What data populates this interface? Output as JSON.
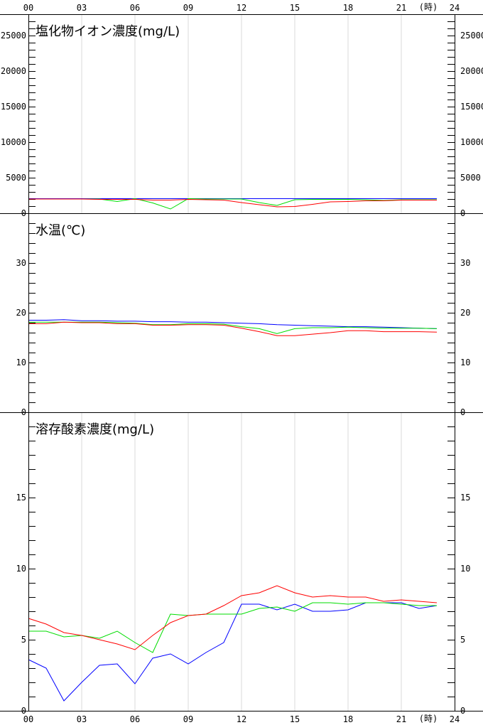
{
  "x_axis": {
    "tick_labels": [
      "00",
      "03",
      "06",
      "09",
      "12",
      "15",
      "18",
      "21",
      "24"
    ],
    "unit_label": "(時)"
  },
  "chart_data": [
    {
      "type": "line",
      "title": "塩化物イオン濃度(mg/L)",
      "x": [
        0,
        1,
        2,
        3,
        4,
        5,
        6,
        7,
        8,
        9,
        10,
        11,
        12,
        13,
        14,
        15,
        16,
        17,
        18,
        19,
        20,
        21,
        22,
        23
      ],
      "ylim": [
        0,
        28000
      ],
      "y_tick_labels": [
        "0",
        "5000",
        "10000",
        "15000",
        "20000",
        "25000"
      ],
      "y_tick_values": [
        0,
        5000,
        10000,
        15000,
        20000,
        25000
      ],
      "minor_step": 1000,
      "grid": "vertical",
      "series": [
        {
          "color": "#0000ff",
          "values": [
            2050,
            2050,
            2050,
            2050,
            2050,
            2050,
            2050,
            2050,
            2050,
            2050,
            2050,
            2050,
            2050,
            2050,
            2050,
            2050,
            2050,
            2050,
            2050,
            2050,
            2050,
            2050,
            2050,
            2050
          ]
        },
        {
          "color": "#00dd00",
          "values": [
            2000,
            2000,
            2000,
            2000,
            2000,
            1650,
            2050,
            1450,
            600,
            2050,
            2000,
            2000,
            2000,
            1500,
            1100,
            1900,
            1950,
            1950,
            1950,
            1900,
            1800,
            1900,
            1900,
            1900
          ]
        },
        {
          "color": "#ff0000",
          "values": [
            2000,
            2000,
            2000,
            2000,
            1950,
            1950,
            1950,
            1850,
            1850,
            1950,
            1900,
            1850,
            1500,
            1200,
            900,
            950,
            1250,
            1600,
            1650,
            1750,
            1750,
            1850,
            1850,
            1850
          ]
        }
      ]
    },
    {
      "type": "line",
      "title": "水温(℃)",
      "x": [
        0,
        1,
        2,
        3,
        4,
        5,
        6,
        7,
        8,
        9,
        10,
        11,
        12,
        13,
        14,
        15,
        16,
        17,
        18,
        19,
        20,
        21,
        22,
        23
      ],
      "ylim": [
        0,
        40
      ],
      "y_tick_labels": [
        "0",
        "10",
        "20",
        "30"
      ],
      "y_tick_values": [
        0,
        10,
        20,
        30
      ],
      "minor_step": 2,
      "grid": "none",
      "series": [
        {
          "color": "#0000ff",
          "values": [
            18.5,
            18.5,
            18.6,
            18.4,
            18.4,
            18.3,
            18.3,
            18.2,
            18.2,
            18.1,
            18.1,
            18.0,
            17.9,
            17.8,
            17.6,
            17.5,
            17.4,
            17.3,
            17.2,
            17.2,
            17.1,
            17.0,
            16.9,
            16.8
          ]
        },
        {
          "color": "#00dd00",
          "values": [
            18.1,
            18.1,
            18.1,
            18.1,
            18.1,
            18.0,
            17.9,
            17.6,
            17.6,
            17.8,
            17.8,
            17.7,
            17.2,
            16.8,
            15.8,
            16.8,
            17.0,
            17.0,
            17.1,
            17.0,
            16.9,
            16.9,
            16.9,
            16.8
          ]
        },
        {
          "color": "#ff0000",
          "values": [
            17.8,
            17.8,
            18.1,
            18.0,
            18.0,
            17.8,
            17.8,
            17.5,
            17.5,
            17.6,
            17.6,
            17.5,
            16.9,
            16.2,
            15.4,
            15.4,
            15.7,
            16.0,
            16.4,
            16.4,
            16.2,
            16.2,
            16.2,
            16.1
          ]
        }
      ]
    },
    {
      "type": "line",
      "title": "溶存酸素濃度(mg/L)",
      "x": [
        0,
        1,
        2,
        3,
        4,
        5,
        6,
        7,
        8,
        9,
        10,
        11,
        12,
        13,
        14,
        15,
        16,
        17,
        18,
        19,
        20,
        21,
        22,
        23
      ],
      "ylim": [
        0,
        21
      ],
      "y_tick_labels": [
        "0",
        "5",
        "10",
        "15"
      ],
      "y_tick_values": [
        0,
        5,
        10,
        15
      ],
      "minor_step": 1,
      "grid": "vertical",
      "series": [
        {
          "color": "#0000ff",
          "values": [
            3.6,
            3.0,
            0.7,
            2.0,
            3.2,
            3.3,
            1.9,
            3.7,
            4.0,
            3.3,
            4.1,
            4.8,
            7.5,
            7.5,
            7.1,
            7.5,
            7.0,
            7.0,
            7.1,
            7.6,
            7.6,
            7.6,
            7.2,
            7.4
          ]
        },
        {
          "color": "#00dd00",
          "values": [
            5.6,
            5.6,
            5.2,
            5.3,
            5.1,
            5.6,
            4.8,
            4.1,
            6.8,
            6.7,
            6.8,
            6.8,
            6.8,
            7.2,
            7.3,
            7.0,
            7.6,
            7.6,
            7.5,
            7.6,
            7.6,
            7.5,
            7.4,
            7.4
          ]
        },
        {
          "color": "#ff0000",
          "values": [
            6.5,
            6.1,
            5.5,
            5.3,
            5.0,
            4.7,
            4.3,
            5.3,
            6.2,
            6.7,
            6.8,
            7.4,
            8.1,
            8.3,
            8.8,
            8.3,
            8.0,
            8.1,
            8.0,
            8.0,
            7.7,
            7.8,
            7.7,
            7.6
          ]
        }
      ]
    }
  ]
}
